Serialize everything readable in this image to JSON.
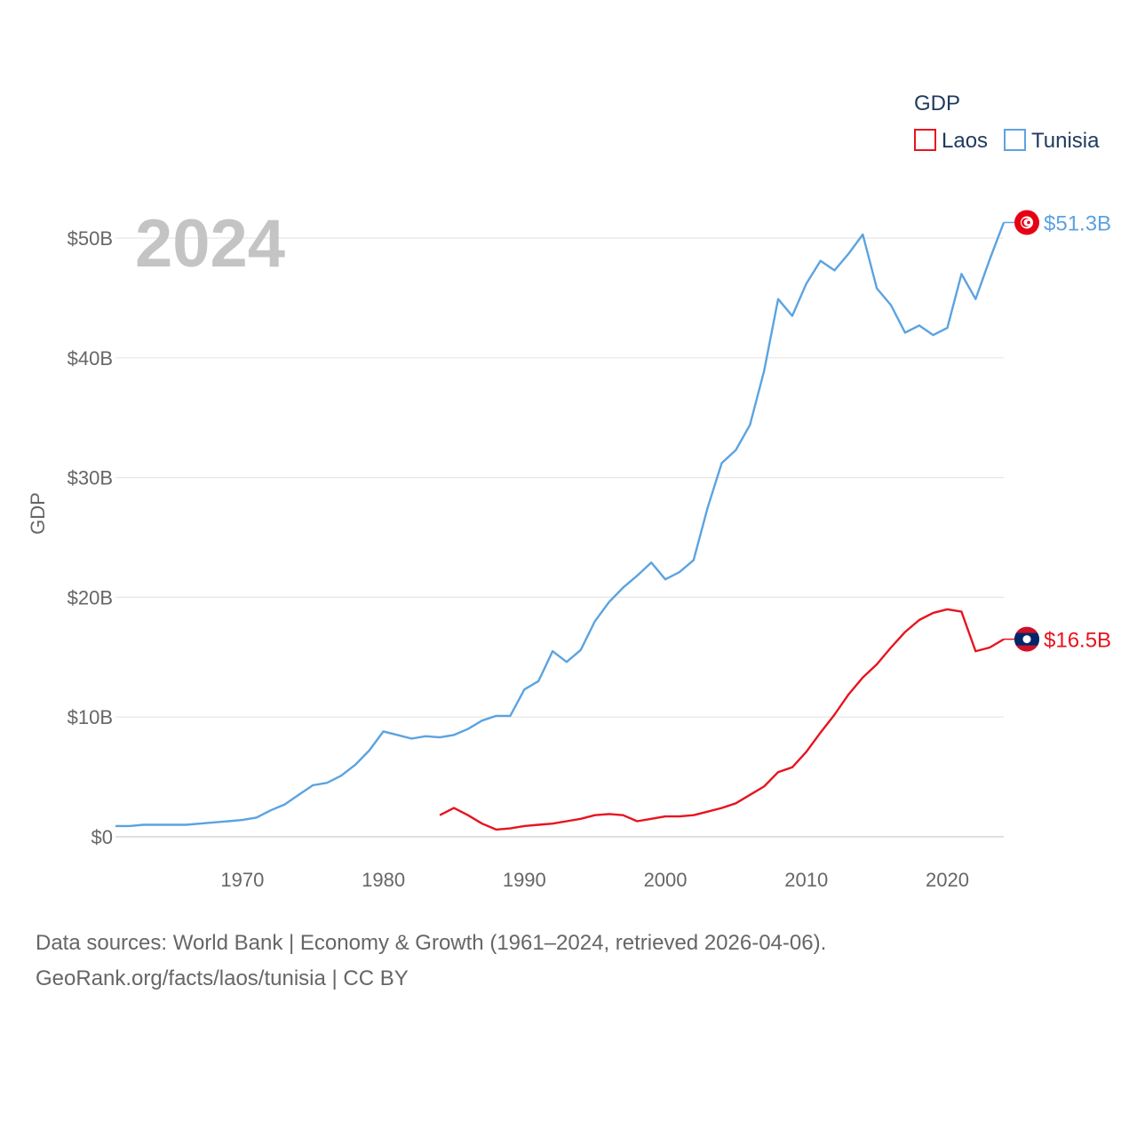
{
  "chart_data": {
    "type": "line",
    "title": "",
    "year_overlay": "2024",
    "ylabel": "GDP",
    "xlabel": "",
    "xlim": [
      1961,
      2024
    ],
    "ylim": [
      0,
      50
    ],
    "y_unit": "billion USD",
    "y_ticks": [
      0,
      10,
      20,
      30,
      40,
      50
    ],
    "y_tick_labels": [
      "$0",
      "$10B",
      "$20B",
      "$30B",
      "$40B",
      "$50B"
    ],
    "x_ticks": [
      1970,
      1980,
      1990,
      2000,
      2010,
      2020
    ],
    "x_tick_labels": [
      "1970",
      "1980",
      "1990",
      "2000",
      "2010",
      "2020"
    ],
    "grid": true,
    "legend": {
      "title": "GDP",
      "position": "top-right",
      "entries": [
        "Laos",
        "Tunisia"
      ]
    },
    "series": [
      {
        "name": "Laos",
        "color": "#e8131f",
        "end_label": "$16.5B",
        "flag": "laos-flag",
        "x": [
          1984,
          1985,
          1986,
          1987,
          1988,
          1989,
          1990,
          1991,
          1992,
          1993,
          1994,
          1995,
          1996,
          1997,
          1998,
          1999,
          2000,
          2001,
          2002,
          2003,
          2004,
          2005,
          2006,
          2007,
          2008,
          2009,
          2010,
          2011,
          2012,
          2013,
          2014,
          2015,
          2016,
          2017,
          2018,
          2019,
          2020,
          2021,
          2022,
          2023,
          2024
        ],
        "values": [
          1.8,
          2.4,
          1.8,
          1.1,
          0.6,
          0.7,
          0.9,
          1.0,
          1.1,
          1.3,
          1.5,
          1.8,
          1.9,
          1.8,
          1.3,
          1.5,
          1.7,
          1.7,
          1.8,
          2.1,
          2.4,
          2.8,
          3.5,
          4.2,
          5.4,
          5.8,
          7.1,
          8.7,
          10.2,
          11.9,
          13.3,
          14.4,
          15.8,
          17.1,
          18.1,
          18.7,
          19.0,
          18.8,
          15.5,
          15.8,
          16.5
        ]
      },
      {
        "name": "Tunisia",
        "color": "#5ba3e0",
        "end_label": "$51.3B",
        "flag": "tunisia-flag",
        "x": [
          1961,
          1962,
          1963,
          1964,
          1965,
          1966,
          1967,
          1968,
          1969,
          1970,
          1971,
          1972,
          1973,
          1974,
          1975,
          1976,
          1977,
          1978,
          1979,
          1980,
          1981,
          1982,
          1983,
          1984,
          1985,
          1986,
          1987,
          1988,
          1989,
          1990,
          1991,
          1992,
          1993,
          1994,
          1995,
          1996,
          1997,
          1998,
          1999,
          2000,
          2001,
          2002,
          2003,
          2004,
          2005,
          2006,
          2007,
          2008,
          2009,
          2010,
          2011,
          2012,
          2013,
          2014,
          2015,
          2016,
          2017,
          2018,
          2019,
          2020,
          2021,
          2022,
          2023,
          2024
        ],
        "values": [
          0.9,
          0.9,
          1.0,
          1.0,
          1.0,
          1.0,
          1.1,
          1.2,
          1.3,
          1.4,
          1.6,
          2.2,
          2.7,
          3.5,
          4.3,
          4.5,
          5.1,
          6.0,
          7.2,
          8.8,
          8.5,
          8.2,
          8.4,
          8.3,
          8.5,
          9.0,
          9.7,
          10.1,
          10.1,
          12.3,
          13.0,
          15.5,
          14.6,
          15.6,
          18.0,
          19.6,
          20.8,
          21.8,
          22.9,
          21.5,
          22.1,
          23.1,
          27.5,
          31.2,
          32.3,
          34.4,
          38.9,
          44.9,
          43.5,
          46.2,
          48.1,
          47.3,
          48.7,
          50.3,
          45.8,
          44.4,
          42.1,
          42.7,
          41.9,
          42.5,
          47.0,
          44.9,
          48.2,
          51.3
        ]
      }
    ]
  },
  "footer": {
    "line1": "Data sources: World Bank | Economy & Growth (1961–2024, retrieved 2026-04-06).",
    "line2": "GeoRank.org/facts/laos/tunisia | CC BY"
  }
}
